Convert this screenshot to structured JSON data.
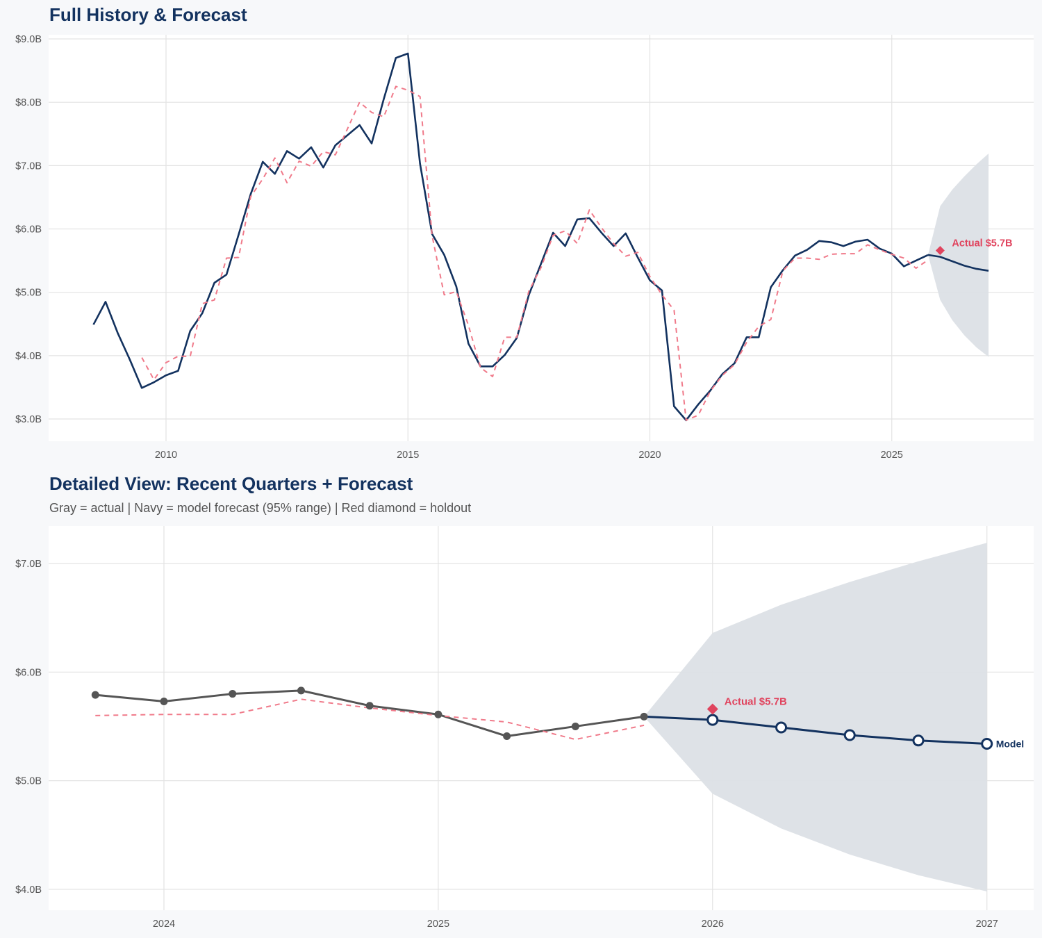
{
  "colors": {
    "actual_history": "#13325f",
    "actual_recent": "#555555",
    "dashed": "#f07a8a",
    "forecast": "#13325f",
    "band": "#dce0e6",
    "holdout": "#e0445e",
    "grid": "#e3e3e3",
    "title": "#13325f"
  },
  "chart_data": [
    {
      "type": "line",
      "title": "Full History & Forecast",
      "grid": true,
      "xlim": [
        "2007-08",
        "2028-01"
      ],
      "ylim": [
        2.7,
        9.05
      ],
      "x_ticks": [
        {
          "x": "2010-01",
          "label": "2010"
        },
        {
          "x": "2015-01",
          "label": "2015"
        },
        {
          "x": "2020-01",
          "label": "2020"
        },
        {
          "x": "2025-01",
          "label": "2025"
        }
      ],
      "y_ticks": [
        {
          "y": 3,
          "label": "$3.0B"
        },
        {
          "y": 4,
          "label": "$4.0B"
        },
        {
          "y": 5,
          "label": "$5.0B"
        },
        {
          "y": 6,
          "label": "$6.0B"
        },
        {
          "y": 7,
          "label": "$7.0B"
        },
        {
          "y": 8,
          "label": "$8.0B"
        },
        {
          "y": 9,
          "label": "$9.0B"
        }
      ],
      "series": [
        {
          "role": "actual",
          "style": "solid",
          "color": "#13325f",
          "x": [
            "2008-07",
            "2008-10",
            "2009-01",
            "2009-04",
            "2009-07",
            "2009-10",
            "2010-01",
            "2010-04",
            "2010-07",
            "2010-10",
            "2011-01",
            "2011-04",
            "2011-07",
            "2011-10",
            "2012-01",
            "2012-04",
            "2012-07",
            "2012-10",
            "2013-01",
            "2013-04",
            "2013-07",
            "2013-10",
            "2014-01",
            "2014-04",
            "2014-07",
            "2014-10",
            "2015-01",
            "2015-04",
            "2015-07",
            "2015-10",
            "2016-01",
            "2016-04",
            "2016-07",
            "2016-10",
            "2017-01",
            "2017-04",
            "2017-07",
            "2017-10",
            "2018-01",
            "2018-04",
            "2018-07",
            "2018-10",
            "2019-01",
            "2019-04",
            "2019-07",
            "2019-10",
            "2020-01",
            "2020-04",
            "2020-07",
            "2020-10",
            "2021-01",
            "2021-04",
            "2021-07",
            "2021-10",
            "2022-01",
            "2022-04",
            "2022-07",
            "2022-10",
            "2023-01",
            "2023-04",
            "2023-07",
            "2023-10",
            "2024-01",
            "2024-04",
            "2024-07",
            "2024-10",
            "2025-01",
            "2025-04",
            "2025-07",
            "2025-10"
          ],
          "y": [
            4.49,
            4.85,
            4.36,
            3.94,
            3.49,
            3.58,
            3.69,
            3.76,
            4.39,
            4.67,
            5.15,
            5.28,
            5.91,
            6.55,
            7.06,
            6.87,
            7.23,
            7.11,
            7.29,
            6.97,
            7.32,
            7.48,
            7.64,
            7.35,
            8.05,
            8.7,
            8.77,
            7.03,
            5.92,
            5.59,
            5.09,
            4.19,
            3.83,
            3.83,
            4.01,
            4.28,
            4.96,
            5.45,
            5.94,
            5.73,
            6.15,
            6.17,
            5.94,
            5.73,
            5.93,
            5.55,
            5.19,
            5.03,
            3.2,
            2.98,
            3.23,
            3.45,
            3.71,
            3.88,
            4.29,
            4.29,
            5.08,
            5.35,
            5.58,
            5.67,
            5.81,
            5.79,
            5.73,
            5.8,
            5.83,
            5.69,
            5.61,
            5.41,
            5.5,
            5.59
          ]
        },
        {
          "role": "dashed",
          "style": "dashed",
          "color": "#f07a8a",
          "x": [
            "2009-07",
            "2009-10",
            "2010-01",
            "2010-04",
            "2010-07",
            "2010-10",
            "2011-01",
            "2011-04",
            "2011-07",
            "2011-10",
            "2012-01",
            "2012-04",
            "2012-07",
            "2012-10",
            "2013-01",
            "2013-04",
            "2013-07",
            "2013-10",
            "2014-01",
            "2014-04",
            "2014-07",
            "2014-10",
            "2015-01",
            "2015-04",
            "2015-07",
            "2015-10",
            "2016-01",
            "2016-04",
            "2016-07",
            "2016-10",
            "2017-01",
            "2017-04",
            "2017-07",
            "2017-10",
            "2018-01",
            "2018-04",
            "2018-07",
            "2018-10",
            "2019-01",
            "2019-04",
            "2019-07",
            "2019-10",
            "2020-01",
            "2020-04",
            "2020-07",
            "2020-10",
            "2021-01",
            "2021-04",
            "2021-07",
            "2021-10",
            "2022-01",
            "2022-04",
            "2022-07",
            "2022-10",
            "2023-01",
            "2023-04",
            "2023-07",
            "2023-10",
            "2024-01",
            "2024-04",
            "2024-07",
            "2024-10",
            "2025-01",
            "2025-04",
            "2025-07",
            "2025-10"
          ],
          "y": [
            3.97,
            3.62,
            3.89,
            3.99,
            3.99,
            4.82,
            4.88,
            5.54,
            5.55,
            6.51,
            6.79,
            7.12,
            6.73,
            7.07,
            6.99,
            7.22,
            7.17,
            7.58,
            8.0,
            7.84,
            7.77,
            8.25,
            8.19,
            8.09,
            5.89,
            4.96,
            5.01,
            4.48,
            3.81,
            3.67,
            4.29,
            4.29,
            5.02,
            5.39,
            5.9,
            5.97,
            5.77,
            6.3,
            6.02,
            5.77,
            5.57,
            5.63,
            5.25,
            4.96,
            4.72,
            2.98,
            3.06,
            3.44,
            3.69,
            3.86,
            4.21,
            4.46,
            4.57,
            5.34,
            5.54,
            5.54,
            5.52,
            5.6,
            5.61,
            5.61,
            5.75,
            5.67,
            5.6,
            5.54,
            5.38,
            5.51
          ]
        },
        {
          "role": "forecast",
          "style": "solid",
          "color": "#13325f",
          "x": [
            "2025-10",
            "2026-01",
            "2026-04",
            "2026-07",
            "2026-10",
            "2027-01"
          ],
          "y": [
            5.59,
            5.56,
            5.49,
            5.42,
            5.37,
            5.34
          ]
        }
      ],
      "band": {
        "x": [
          "2025-10",
          "2026-01",
          "2026-04",
          "2026-07",
          "2026-10",
          "2027-01"
        ],
        "lower": [
          5.59,
          4.88,
          4.56,
          4.32,
          4.13,
          3.98
        ],
        "upper": [
          5.59,
          6.36,
          6.62,
          6.83,
          7.02,
          7.19
        ]
      },
      "holdout": {
        "x": "2026-01",
        "y": 5.66,
        "label": "Actual $5.7B"
      }
    },
    {
      "type": "line",
      "title": "Detailed View: Recent Quarters + Forecast",
      "subtitle": "Gray = actual  |  Navy = model forecast (95% range)  |  Red diamond = holdout",
      "grid": true,
      "xlim": [
        "2023-07",
        "2027-03"
      ],
      "ylim": [
        3.8,
        7.35
      ],
      "x_ticks": [
        {
          "x": "2024-01",
          "label": "2024"
        },
        {
          "x": "2025-01",
          "label": "2025"
        },
        {
          "x": "2026-01",
          "label": "2026"
        },
        {
          "x": "2027-01",
          "label": "2027"
        }
      ],
      "y_ticks": [
        {
          "y": 4,
          "label": "$4.0B"
        },
        {
          "y": 5,
          "label": "$5.0B"
        },
        {
          "y": 6,
          "label": "$6.0B"
        },
        {
          "y": 7,
          "label": "$7.0B"
        }
      ],
      "series": [
        {
          "role": "actual",
          "style": "solid-markers",
          "color": "#555555",
          "x": [
            "2023-10",
            "2024-01",
            "2024-04",
            "2024-07",
            "2024-10",
            "2025-01",
            "2025-04",
            "2025-07",
            "2025-10"
          ],
          "y": [
            5.79,
            5.73,
            5.8,
            5.83,
            5.69,
            5.61,
            5.41,
            5.5,
            5.59
          ]
        },
        {
          "role": "dashed",
          "style": "dashed",
          "color": "#f07a8a",
          "x": [
            "2023-10",
            "2024-01",
            "2024-04",
            "2024-07",
            "2024-10",
            "2025-01",
            "2025-04",
            "2025-07",
            "2025-10"
          ],
          "y": [
            5.6,
            5.61,
            5.61,
            5.75,
            5.67,
            5.6,
            5.54,
            5.38,
            5.51
          ]
        },
        {
          "role": "forecast",
          "style": "solid-open-markers",
          "color": "#13325f",
          "label": "Model",
          "x": [
            "2025-10",
            "2026-01",
            "2026-04",
            "2026-07",
            "2026-10",
            "2027-01"
          ],
          "y": [
            5.59,
            5.56,
            5.49,
            5.42,
            5.37,
            5.34
          ]
        }
      ],
      "band": {
        "x": [
          "2025-10",
          "2026-01",
          "2026-04",
          "2026-07",
          "2026-10",
          "2027-01"
        ],
        "lower": [
          5.59,
          4.88,
          4.56,
          4.32,
          4.13,
          3.98
        ],
        "upper": [
          5.59,
          6.36,
          6.62,
          6.83,
          7.02,
          7.19
        ]
      },
      "holdout": {
        "x": "2026-01",
        "y": 5.66,
        "label": "Actual $5.7B"
      }
    }
  ]
}
